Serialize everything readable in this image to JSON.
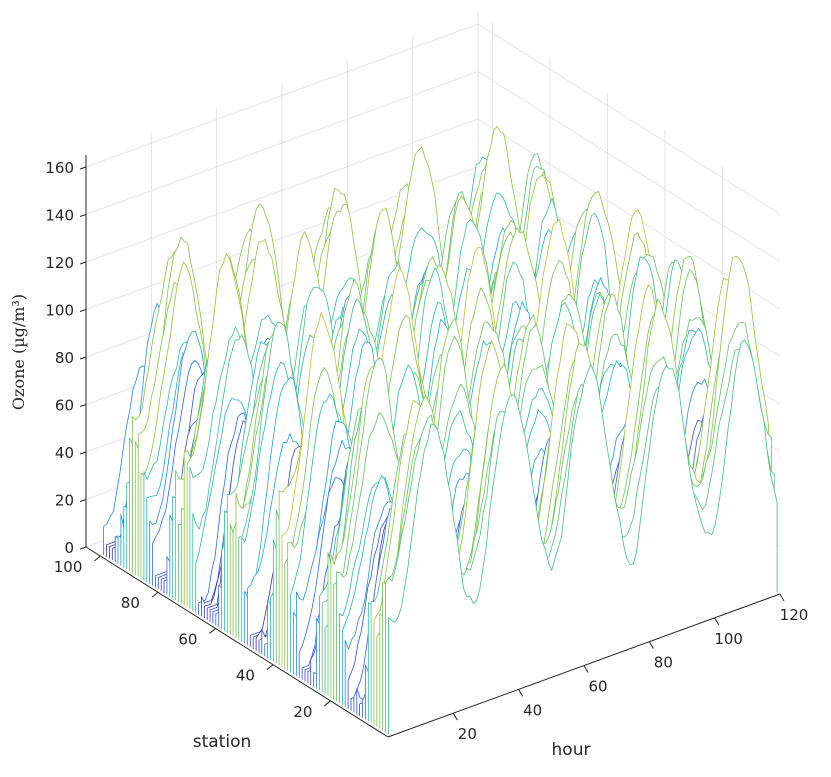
{
  "chart_data": {
    "type": "waterfall-3d",
    "xlabel": "hour",
    "ylabel": "station",
    "zlabel": "Ozone (µg/m³)",
    "xlim": [
      0,
      120
    ],
    "ylim": [
      0,
      105
    ],
    "zlim": [
      0,
      165
    ],
    "x_ticks": [
      20,
      40,
      60,
      80,
      100,
      120
    ],
    "y_ticks": [
      20,
      40,
      60,
      80,
      100
    ],
    "z_ticks": [
      0,
      20,
      40,
      60,
      80,
      100,
      120,
      140,
      160
    ],
    "grid": true,
    "colormap": "parula",
    "colors": [
      "#3e26a8",
      "#2f64e7",
      "#1caadf",
      "#2bbd9e",
      "#8cc53c",
      "#e8ba2f",
      "#f9fb15"
    ],
    "n_stations": 100,
    "n_hours": 120,
    "diurnal_period_hours": 24,
    "z_range_observed": [
      5,
      167
    ]
  }
}
